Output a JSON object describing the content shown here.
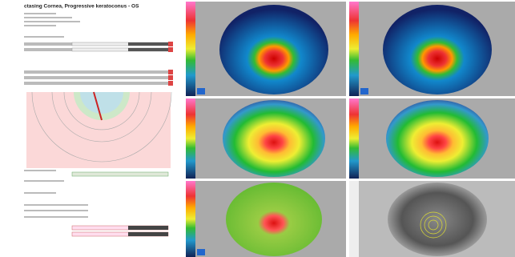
{
  "header": {
    "title": "ctasing Cornea, Progressive keratoconus - OS"
  }
}
